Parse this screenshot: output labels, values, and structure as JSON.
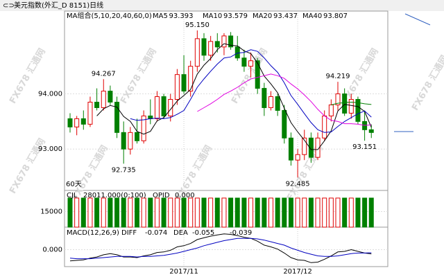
{
  "header": {
    "title": "美元指数(外汇_D 8151)日线"
  },
  "watermark": "FX678 汇通网",
  "chart_data": [
    {
      "type": "candlestick",
      "legend_title": "MA组合(5,10,20,40,60,0)",
      "period_label": "60天",
      "categories": [
        null,
        null,
        null,
        null,
        null,
        null,
        null,
        null,
        null,
        null,
        null,
        null,
        null,
        null,
        null,
        null,
        null,
        "2017/11",
        null,
        null,
        null,
        null,
        null,
        null,
        null,
        null,
        null,
        null,
        null,
        null,
        null,
        null,
        null,
        null,
        "2017/12",
        null,
        null,
        null,
        null,
        null,
        null,
        null,
        null,
        null,
        null,
        null
      ],
      "open": [
        93.55,
        93.4,
        93.55,
        93.45,
        93.85,
        93.75,
        94.05,
        93.85,
        93.3,
        93.0,
        93.3,
        93.15,
        93.6,
        93.55,
        93.95,
        93.6,
        93.9,
        94.35,
        94.05,
        94.5,
        95.0,
        94.7,
        94.95,
        94.85,
        95.05,
        94.85,
        94.65,
        94.5,
        94.6,
        94.1,
        93.75,
        93.95,
        93.7,
        93.2,
        92.8,
        92.9,
        93.2,
        92.85,
        93.2,
        93.6,
        93.8,
        94.0,
        93.65,
        93.9,
        93.5,
        93.35
      ],
      "high": [
        93.65,
        93.6,
        93.7,
        93.95,
        94.1,
        94.267,
        94.15,
        93.95,
        93.5,
        93.4,
        93.55,
        93.7,
        93.9,
        94.05,
        94.0,
        94.0,
        94.45,
        94.7,
        94.6,
        95.15,
        95.1,
        95.05,
        95.1,
        95.1,
        95.12,
        95.05,
        94.8,
        94.75,
        94.65,
        94.2,
        94.05,
        94.0,
        93.8,
        93.3,
        93.0,
        93.35,
        93.3,
        93.3,
        93.7,
        93.9,
        94.219,
        94.1,
        94.0,
        93.95,
        93.7,
        93.45
      ],
      "low": [
        93.3,
        93.25,
        93.35,
        93.4,
        93.7,
        93.7,
        93.8,
        93.2,
        92.735,
        92.9,
        93.1,
        93.1,
        93.45,
        93.5,
        93.55,
        93.5,
        93.8,
        94.0,
        93.95,
        94.4,
        94.6,
        94.6,
        94.75,
        94.7,
        94.8,
        94.6,
        94.4,
        94.3,
        94.0,
        93.6,
        93.7,
        93.6,
        93.1,
        92.7,
        92.485,
        92.8,
        92.75,
        92.8,
        93.15,
        93.5,
        93.7,
        93.6,
        93.55,
        93.45,
        93.151,
        93.2
      ],
      "close": [
        93.4,
        93.55,
        93.45,
        93.85,
        93.75,
        94.05,
        93.85,
        93.3,
        93.0,
        93.3,
        93.15,
        93.6,
        93.55,
        93.95,
        93.6,
        93.9,
        94.35,
        94.05,
        94.5,
        95.0,
        94.7,
        94.95,
        94.85,
        95.05,
        94.85,
        94.65,
        94.5,
        94.6,
        94.1,
        93.75,
        93.95,
        93.7,
        93.2,
        92.8,
        92.9,
        93.2,
        92.85,
        93.2,
        93.6,
        93.8,
        94.0,
        93.65,
        93.9,
        93.5,
        93.35,
        93.3
      ],
      "up_color": "#e00000",
      "down_color": "#008000",
      "ylim": [
        92.25,
        95.45
      ],
      "yticks": [
        {
          "value": 93,
          "label": "93.000"
        },
        {
          "value": 94,
          "label": "94.000"
        }
      ],
      "series": [
        {
          "name": "MA5",
          "color": "#000000",
          "values": [
            null,
            null,
            null,
            null,
            93.6,
            93.73,
            93.79,
            93.76,
            93.59,
            93.5,
            93.32,
            93.27,
            93.32,
            93.51,
            93.57,
            93.72,
            93.87,
            93.97,
            94.08,
            94.36,
            94.52,
            94.64,
            94.8,
            94.91,
            94.88,
            94.87,
            94.78,
            94.73,
            94.56,
            94.32,
            94.18,
            94.02,
            93.74,
            93.48,
            93.31,
            93.16,
            92.99,
            92.99,
            93.15,
            93.33,
            93.69,
            93.81,
            93.79,
            93.77,
            93.68,
            93.393
          ]
        },
        {
          "name": "MA10",
          "color": "#0000c0",
          "values": [
            null,
            null,
            null,
            null,
            null,
            null,
            null,
            null,
            null,
            93.55,
            93.52,
            93.53,
            93.55,
            93.56,
            93.55,
            93.57,
            93.63,
            93.7,
            93.9,
            94.12,
            94.27,
            94.41,
            94.54,
            94.65,
            94.67,
            94.74,
            94.75,
            94.8,
            94.77,
            94.65,
            94.51,
            94.39,
            94.2,
            93.97,
            93.81,
            93.64,
            93.48,
            93.35,
            93.3,
            93.31,
            93.41,
            93.5,
            93.57,
            93.64,
            93.69,
            93.579
          ]
        },
        {
          "name": "MA20",
          "color": "#e000e0",
          "values": [
            null,
            null,
            null,
            null,
            null,
            null,
            null,
            null,
            null,
            null,
            null,
            null,
            null,
            null,
            null,
            null,
            null,
            null,
            null,
            93.68,
            93.75,
            93.82,
            93.9,
            93.99,
            94.05,
            94.12,
            94.2,
            94.27,
            94.3,
            94.33,
            94.36,
            94.33,
            94.28,
            94.18,
            94.09,
            93.98,
            93.86,
            93.72,
            93.6,
            93.52,
            93.5,
            93.46,
            93.46,
            93.45,
            93.43,
            93.437
          ]
        },
        {
          "name": "MA40",
          "color": "#008000",
          "values": [
            null,
            null,
            null,
            null,
            null,
            null,
            null,
            null,
            null,
            null,
            null,
            null,
            null,
            null,
            null,
            null,
            null,
            null,
            null,
            null,
            null,
            null,
            null,
            null,
            null,
            null,
            null,
            null,
            null,
            null,
            null,
            null,
            null,
            null,
            null,
            null,
            null,
            null,
            null,
            93.8,
            93.83,
            93.84,
            93.85,
            93.84,
            93.82,
            93.807
          ]
        }
      ],
      "annotations": [
        {
          "value": 95.15,
          "label": "95.150"
        },
        {
          "value": 94.267,
          "label": "94.267"
        },
        {
          "value": 92.735,
          "label": "92.735"
        },
        {
          "value": 92.485,
          "label": "92.485"
        },
        {
          "value": 94.219,
          "label": "94.219"
        },
        {
          "value": 93.151,
          "label": "93.151"
        }
      ]
    },
    {
      "type": "bar",
      "title": "CJL",
      "title_label": "28011.000(0:100)",
      "extra_name": "OPID",
      "extra_label": "0.000",
      "values": [
        28011,
        28011,
        28011,
        28011,
        28011,
        28011,
        28011,
        28011,
        28011,
        28011,
        28011,
        28011,
        28011,
        28011,
        28011,
        28011,
        28011,
        28011,
        28011,
        28011,
        28011,
        28011,
        28011,
        28011,
        28011,
        28011,
        28011,
        28011,
        28011,
        28011,
        28011,
        28011,
        28011,
        28011,
        28011,
        28011,
        28011,
        28011,
        28011,
        28011,
        28011,
        28011,
        28011,
        28011,
        28011,
        28011
      ],
      "ylim": [
        0,
        32000
      ],
      "yticks": [
        15000
      ]
    },
    {
      "type": "line",
      "title": "MACD(12,26,9)",
      "macd_label": "-0.039",
      "ylim": [
        -0.3,
        0.35
      ],
      "yticks": [
        {
          "value": 0,
          "label": "0.000"
        }
      ],
      "series": [
        {
          "name": "DIFF",
          "color": "#000000",
          "values": [
            -0.2,
            -0.19,
            -0.18,
            -0.15,
            -0.13,
            -0.09,
            -0.07,
            -0.09,
            -0.13,
            -0.13,
            -0.14,
            -0.11,
            -0.09,
            -0.05,
            -0.04,
            -0.01,
            0.05,
            0.07,
            0.11,
            0.18,
            0.21,
            0.24,
            0.26,
            0.28,
            0.27,
            0.25,
            0.22,
            0.2,
            0.15,
            0.08,
            0.05,
            0.01,
            -0.06,
            -0.14,
            -0.18,
            -0.19,
            -0.23,
            -0.22,
            -0.17,
            -0.11,
            -0.04,
            -0.03,
            0.0,
            -0.03,
            -0.06,
            -0.074
          ]
        },
        {
          "name": "DEA",
          "color": "#0000c0",
          "values": [
            -0.15,
            -0.16,
            -0.16,
            -0.16,
            -0.15,
            -0.14,
            -0.13,
            -0.12,
            -0.12,
            -0.12,
            -0.13,
            -0.12,
            -0.12,
            -0.11,
            -0.1,
            -0.08,
            -0.06,
            -0.03,
            0.0,
            0.03,
            0.07,
            0.1,
            0.13,
            0.16,
            0.18,
            0.2,
            0.2,
            0.2,
            0.19,
            0.17,
            0.14,
            0.11,
            0.08,
            0.03,
            -0.01,
            -0.05,
            -0.08,
            -0.11,
            -0.12,
            -0.12,
            -0.11,
            -0.09,
            -0.07,
            -0.06,
            -0.06,
            -0.055
          ]
        }
      ]
    }
  ]
}
